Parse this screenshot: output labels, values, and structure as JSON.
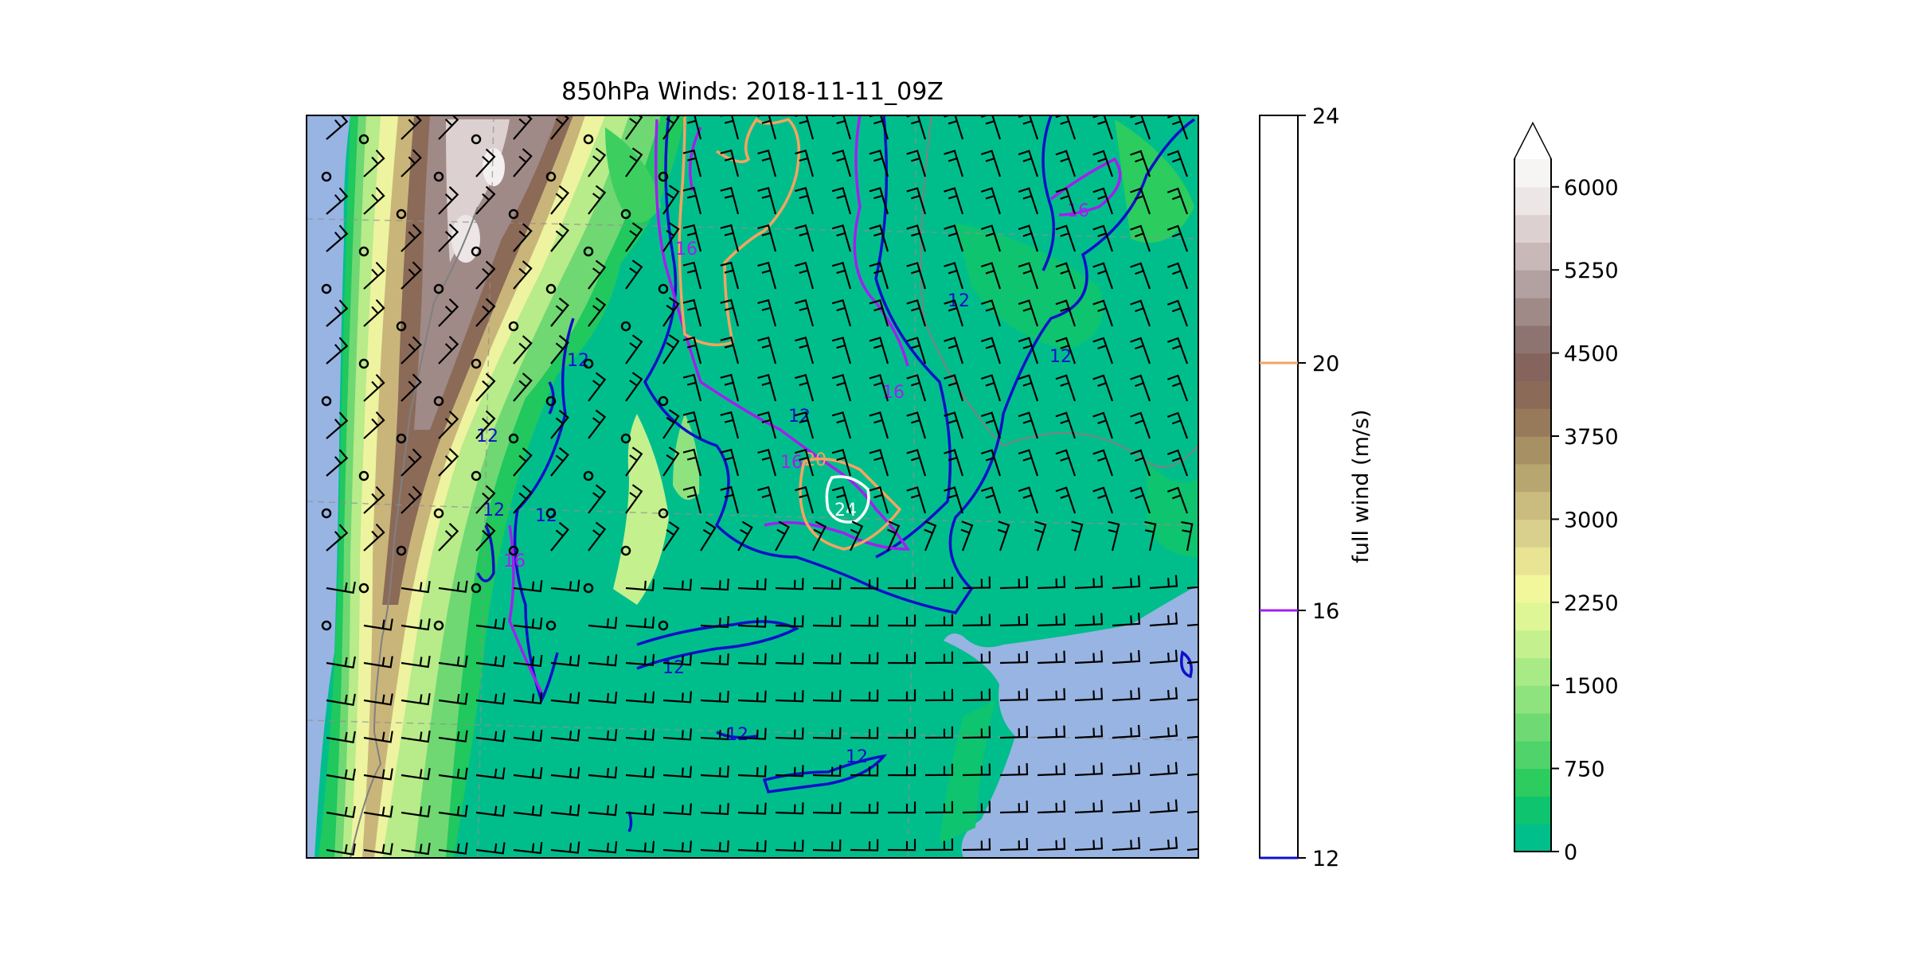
{
  "title": "850hPa Winds: 2018-11-11_09Z",
  "wind_colorbar": {
    "label": "full wind (m/s)",
    "ticks": [
      "12",
      "16",
      "20",
      "24"
    ],
    "levels": [
      {
        "value": 12,
        "color": "#1010c8"
      },
      {
        "value": 16,
        "color": "#a020f0"
      },
      {
        "value": 20,
        "color": "#f4a460"
      },
      {
        "value": 24,
        "color": "#ffffff"
      }
    ]
  },
  "terrain_colorbar": {
    "ticks": [
      "0",
      "750",
      "1500",
      "2250",
      "3000",
      "3750",
      "4500",
      "5250",
      "6000"
    ],
    "extend": "max",
    "colors": [
      "#00bf8a",
      "#0fc46e",
      "#2ccd5e",
      "#4fd36a",
      "#6fda73",
      "#8fe37e",
      "#a8ea86",
      "#c4f08e",
      "#dff697",
      "#f2f79c",
      "#e8e494",
      "#d8d08c",
      "#c9bc7e",
      "#b8a670",
      "#a69064",
      "#977a5a",
      "#8b6a58",
      "#84645c",
      "#8e7471",
      "#a08a88",
      "#b3a0a0",
      "#c8b8b8",
      "#dcd0d0",
      "#ece6e6",
      "#f7f4f4"
    ]
  },
  "map": {
    "ocean_color": "#98b4e2",
    "contour_labels": [
      "12",
      "12",
      "12",
      "12",
      "12",
      "12",
      "12",
      "12",
      "12",
      "12",
      "16",
      "16",
      "16",
      "16",
      "16",
      "20",
      "24"
    ]
  }
}
